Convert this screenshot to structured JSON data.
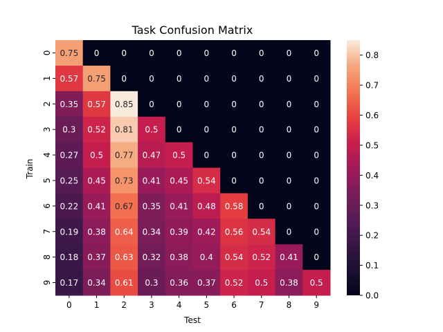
{
  "chart_data": {
    "type": "heatmap",
    "title": "Task Confusion Matrix",
    "xlabel": "Test",
    "ylabel": "Train",
    "x_categories": [
      "0",
      "1",
      "2",
      "3",
      "4",
      "5",
      "6",
      "7",
      "8",
      "9"
    ],
    "y_categories": [
      "0",
      "1",
      "2",
      "3",
      "4",
      "5",
      "6",
      "7",
      "8",
      "9"
    ],
    "values": [
      [
        0.75,
        0,
        0,
        0,
        0,
        0,
        0,
        0,
        0,
        0
      ],
      [
        0.57,
        0.75,
        0,
        0,
        0,
        0,
        0,
        0,
        0,
        0
      ],
      [
        0.35,
        0.57,
        0.85,
        0,
        0,
        0,
        0,
        0,
        0,
        0
      ],
      [
        0.3,
        0.52,
        0.81,
        0.5,
        0,
        0,
        0,
        0,
        0,
        0
      ],
      [
        0.27,
        0.5,
        0.77,
        0.47,
        0.5,
        0,
        0,
        0,
        0,
        0
      ],
      [
        0.25,
        0.45,
        0.73,
        0.41,
        0.45,
        0.54,
        0,
        0,
        0,
        0
      ],
      [
        0.22,
        0.41,
        0.67,
        0.35,
        0.41,
        0.48,
        0.58,
        0,
        0,
        0
      ],
      [
        0.19,
        0.38,
        0.64,
        0.34,
        0.39,
        0.42,
        0.56,
        0.54,
        0,
        0
      ],
      [
        0.18,
        0.37,
        0.63,
        0.32,
        0.38,
        0.4,
        0.54,
        0.52,
        0.41,
        0
      ],
      [
        0.17,
        0.34,
        0.61,
        0.3,
        0.36,
        0.37,
        0.52,
        0.5,
        0.38,
        0.5
      ]
    ],
    "cell_labels": [
      [
        "0.75",
        "0",
        "0",
        "0",
        "0",
        "0",
        "0",
        "0",
        "0",
        "0"
      ],
      [
        "0.57",
        "0.75",
        "0",
        "0",
        "0",
        "0",
        "0",
        "0",
        "0",
        "0"
      ],
      [
        "0.35",
        "0.57",
        "0.85",
        "0",
        "0",
        "0",
        "0",
        "0",
        "0",
        "0"
      ],
      [
        "0.3",
        "0.52",
        "0.81",
        "0.5",
        "0",
        "0",
        "0",
        "0",
        "0",
        "0"
      ],
      [
        "0.27",
        "0.5",
        "0.77",
        "0.47",
        "0.5",
        "0",
        "0",
        "0",
        "0",
        "0"
      ],
      [
        "0.25",
        "0.45",
        "0.73",
        "0.41",
        "0.45",
        "0.54",
        "0",
        "0",
        "0",
        "0"
      ],
      [
        "0.22",
        "0.41",
        "0.67",
        "0.35",
        "0.41",
        "0.48",
        "0.58",
        "0",
        "0",
        "0"
      ],
      [
        "0.19",
        "0.38",
        "0.64",
        "0.34",
        "0.39",
        "0.42",
        "0.56",
        "0.54",
        "0",
        "0"
      ],
      [
        "0.18",
        "0.37",
        "0.63",
        "0.32",
        "0.38",
        "0.4",
        "0.54",
        "0.52",
        "0.41",
        "0"
      ],
      [
        "0.17",
        "0.34",
        "0.61",
        "0.3",
        "0.36",
        "0.37",
        "0.52",
        "0.5",
        "0.38",
        "0.5"
      ]
    ],
    "colorbar": {
      "range": [
        0,
        0.85
      ],
      "ticks": [
        0.0,
        0.1,
        0.2,
        0.3,
        0.4,
        0.5,
        0.6,
        0.7,
        0.8
      ],
      "tick_labels": [
        "0.0",
        "0.1",
        "0.2",
        "0.3",
        "0.4",
        "0.5",
        "0.6",
        "0.7",
        "0.8"
      ],
      "colormap": "rocket"
    },
    "grid": false
  }
}
